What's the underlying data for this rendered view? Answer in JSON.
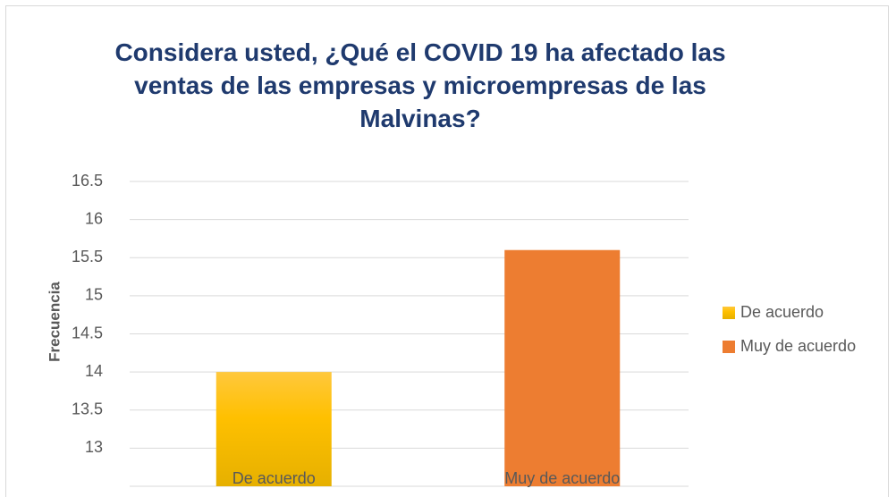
{
  "chart_data": {
    "type": "bar",
    "title": "Considera usted, ¿Qué el COVID 19 ha afectado las ventas de las empresas y microempresas de las Malvinas?",
    "y_label": "Frecuencia",
    "categories": [
      "De acuerdo",
      "Muy de acuerdo"
    ],
    "values": [
      14,
      15.6
    ],
    "colors": [
      "#ffc000",
      "#ed7d31"
    ],
    "ylim": [
      12.5,
      16.5
    ],
    "yticks": [
      13,
      13.5,
      14,
      14.5,
      15,
      15.5,
      16,
      16.5
    ],
    "grid": true,
    "legend": "right"
  }
}
